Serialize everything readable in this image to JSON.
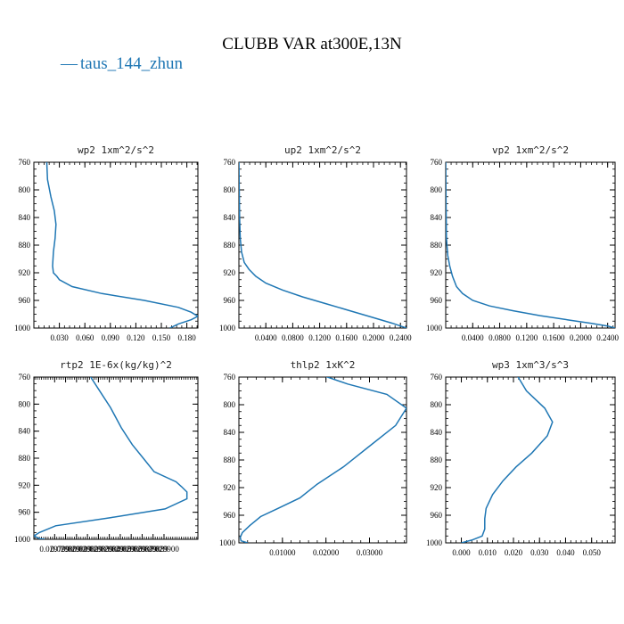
{
  "figure": {
    "title": "CLUBB VAR at300E,13N",
    "legend": [
      {
        "name": "taus_144_zhun",
        "color": "#1f77b4",
        "symbol": "—"
      }
    ]
  },
  "chart_data": [
    {
      "type": "line",
      "title": "wp2  1xm^2/s^2",
      "xlim": [
        0,
        0.193
      ],
      "ylim": [
        760,
        1000
      ],
      "y_inverted": true,
      "xticks": [
        0.03,
        0.06,
        0.09,
        0.12,
        0.15,
        0.18
      ],
      "xtick_labels": [
        "0.030",
        "0.060",
        "0.090",
        "0.120",
        "0.150",
        "0.180"
      ],
      "yticks": [
        760,
        800,
        840,
        880,
        920,
        960,
        1000
      ],
      "ytick_labels": [
        "760",
        "800",
        "840",
        "880",
        "920",
        "960",
        "1000"
      ],
      "series": [
        {
          "color": "#1f77b4",
          "x": [
            0.015,
            0.016,
            0.02,
            0.024,
            0.026,
            0.025,
            0.023,
            0.022,
            0.023,
            0.027,
            0.03,
            0.045,
            0.08,
            0.13,
            0.17,
            0.185,
            0.193,
            0.185,
            0.17,
            0.16
          ],
          "y": [
            755,
            785,
            810,
            830,
            850,
            870,
            890,
            910,
            920,
            925,
            930,
            940,
            950,
            960,
            970,
            977,
            983,
            988,
            994,
            1000
          ]
        }
      ]
    },
    {
      "type": "line",
      "title": "up2  1xm^2/s^2",
      "xlim": [
        0,
        0.249
      ],
      "ylim": [
        760,
        1000
      ],
      "y_inverted": true,
      "xticks": [
        0.04,
        0.08,
        0.12,
        0.16,
        0.2,
        0.24
      ],
      "xtick_labels": [
        "0.0400",
        "0.0800",
        "0.1200",
        "0.1600",
        "0.2000",
        "0.2400"
      ],
      "yticks": [
        760,
        800,
        840,
        880,
        920,
        960,
        1000
      ],
      "ytick_labels": [
        "760",
        "800",
        "840",
        "880",
        "920",
        "960",
        "1000"
      ],
      "series": [
        {
          "color": "#1f77b4",
          "x": [
            0.0,
            0.0005,
            0.001,
            0.002,
            0.004,
            0.008,
            0.015,
            0.025,
            0.04,
            0.065,
            0.095,
            0.13,
            0.165,
            0.2,
            0.228,
            0.249
          ],
          "y": [
            755,
            800,
            840,
            870,
            890,
            905,
            915,
            925,
            935,
            945,
            955,
            965,
            975,
            985,
            993,
            1000
          ]
        }
      ]
    },
    {
      "type": "line",
      "title": "vp2  1xm^2/s^2",
      "xlim": [
        0,
        0.251
      ],
      "ylim": [
        760,
        1000
      ],
      "y_inverted": true,
      "xticks": [
        0.04,
        0.08,
        0.12,
        0.16,
        0.2,
        0.24
      ],
      "xtick_labels": [
        "0.0400",
        "0.0800",
        "0.1200",
        "0.1600",
        "0.2000",
        "0.2400"
      ],
      "yticks": [
        760,
        800,
        840,
        880,
        920,
        960,
        1000
      ],
      "ytick_labels": [
        "760",
        "800",
        "840",
        "880",
        "920",
        "960",
        "1000"
      ],
      "series": [
        {
          "color": "#1f77b4",
          "x": [
            0.0,
            0.0005,
            0.001,
            0.003,
            0.006,
            0.01,
            0.016,
            0.025,
            0.04,
            0.065,
            0.1,
            0.14,
            0.18,
            0.215,
            0.24,
            0.251
          ],
          "y": [
            755,
            820,
            870,
            895,
            910,
            925,
            940,
            950,
            960,
            968,
            975,
            982,
            988,
            993,
            997,
            1000
          ]
        }
      ]
    },
    {
      "type": "line",
      "title": "rtp2  1E-6x(kg/kg)^2",
      "xlim": [
        0.02978,
        0.02993
      ],
      "ylim": [
        760,
        1000
      ],
      "y_inverted": true,
      "xticks": [
        0.029799,
        0.029809,
        0.029819,
        0.029829,
        0.029839,
        0.029849,
        0.029859,
        0.029869,
        0.029879,
        0.029889,
        0.029899
      ],
      "xtick_labels": [
        "0.029799",
        "0.029809",
        "0.029819",
        "0.029829",
        "0.029839",
        "0.029849",
        "0.029859",
        "0.029869",
        "0.029879",
        "0.029889",
        "0.029900"
      ],
      "yticks": [
        760,
        800,
        840,
        880,
        920,
        960,
        1000
      ],
      "ytick_labels": [
        "760",
        "800",
        "840",
        "880",
        "920",
        "960",
        "1000"
      ],
      "series": [
        {
          "color": "#1f77b4",
          "x": [
            0.02983,
            0.02984,
            0.02985,
            0.02986,
            0.02987,
            0.02988,
            0.02989,
            0.02991,
            0.029915,
            0.02992,
            0.02992,
            0.0299,
            0.02985,
            0.0298,
            0.029785,
            0.02978,
            0.029785,
            0.02979
          ],
          "y": [
            755,
            780,
            805,
            835,
            860,
            880,
            900,
            915,
            922,
            930,
            940,
            955,
            968,
            980,
            990,
            995,
            999,
            1000
          ]
        }
      ]
    },
    {
      "type": "line",
      "title": "thlp2  1xK^2",
      "xlim": [
        0,
        0.0385
      ],
      "ylim": [
        760,
        1000
      ],
      "y_inverted": true,
      "xticks": [
        0.01,
        0.02,
        0.03
      ],
      "xtick_labels": [
        "0.01000",
        "0.02000",
        "0.03000"
      ],
      "yticks": [
        760,
        800,
        840,
        880,
        920,
        960,
        1000
      ],
      "ytick_labels": [
        "760",
        "800",
        "840",
        "880",
        "920",
        "960",
        "1000"
      ],
      "series": [
        {
          "color": "#1f77b4",
          "x": [
            0.018,
            0.025,
            0.034,
            0.0385,
            0.036,
            0.03,
            0.024,
            0.018,
            0.014,
            0.009,
            0.005,
            0.0025,
            0.0008,
            0.0003,
            0.0005,
            0.002
          ],
          "y": [
            755,
            770,
            785,
            805,
            830,
            860,
            890,
            915,
            935,
            950,
            962,
            975,
            985,
            992,
            997,
            1000
          ]
        }
      ]
    },
    {
      "type": "line",
      "title": "wp3  1xm^3/s^3",
      "xlim": [
        -0.006,
        0.059
      ],
      "ylim": [
        760,
        1000
      ],
      "y_inverted": true,
      "xticks": [
        0.0,
        0.01,
        0.02,
        0.03,
        0.04,
        0.05
      ],
      "xtick_labels": [
        "0.000",
        "0.010",
        "0.020",
        "0.030",
        "0.040",
        "0.050"
      ],
      "yticks": [
        760,
        800,
        840,
        880,
        920,
        960,
        1000
      ],
      "ytick_labels": [
        "760",
        "800",
        "840",
        "880",
        "920",
        "960",
        "1000"
      ],
      "series": [
        {
          "color": "#1f77b4",
          "x": [
            0.021,
            0.025,
            0.032,
            0.035,
            0.033,
            0.027,
            0.021,
            0.016,
            0.012,
            0.0095,
            0.009,
            0.009,
            0.008,
            0.004,
            0.0
          ],
          "y": [
            755,
            780,
            805,
            825,
            845,
            870,
            890,
            910,
            930,
            950,
            965,
            980,
            990,
            996,
            1000
          ]
        }
      ]
    }
  ]
}
